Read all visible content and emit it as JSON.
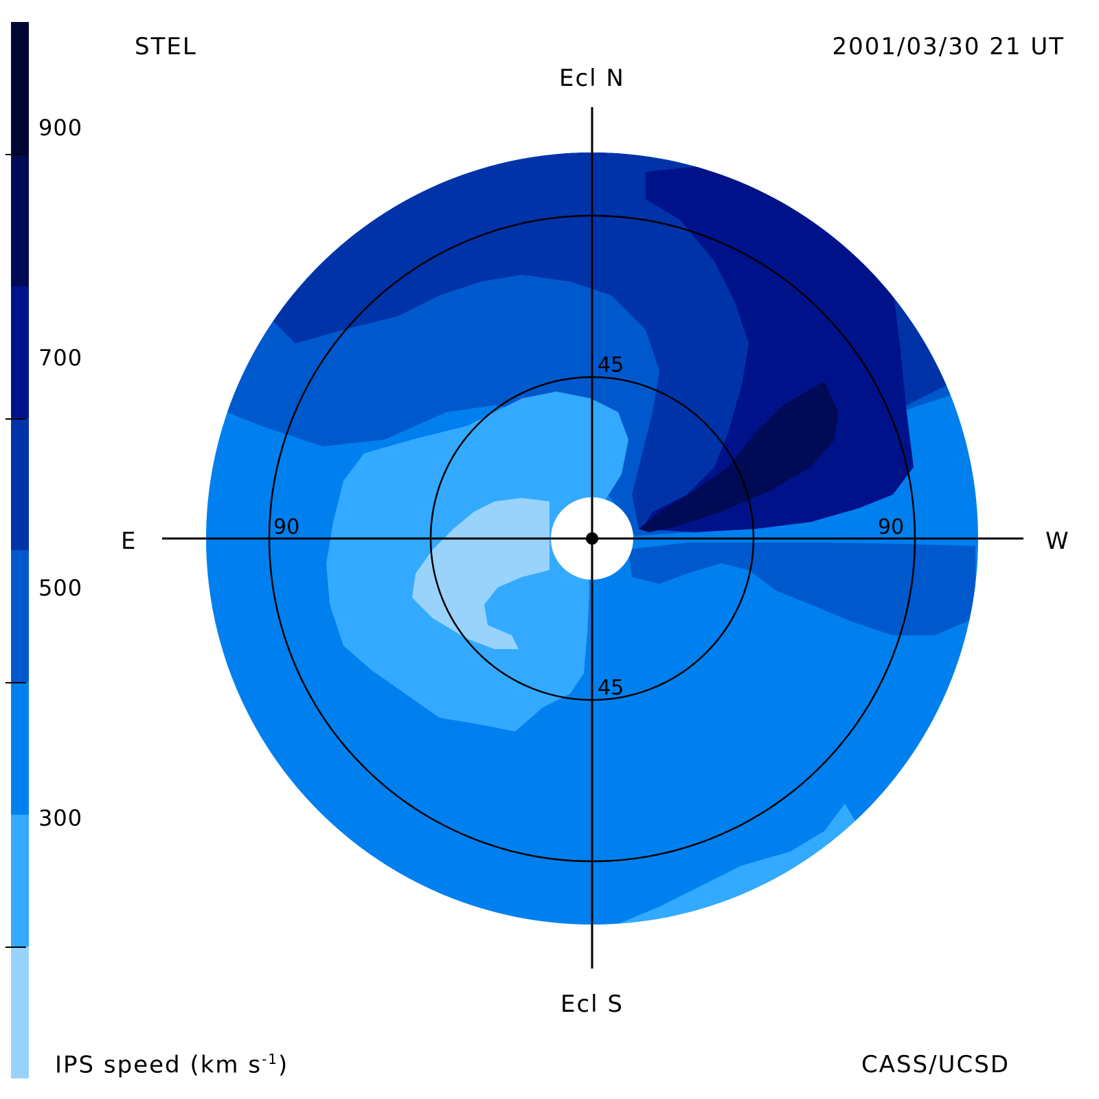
{
  "header": {
    "station": "STEL",
    "datetime": "2001/03/30 21 UT"
  },
  "footer": {
    "quantity_label": "IPS speed (km s",
    "quantity_exp": "-1",
    "quantity_close": ")",
    "credit": "CASS/UCSD"
  },
  "directions": {
    "north": "Ecl N",
    "south": "Ecl S",
    "east": "E",
    "west": "W"
  },
  "rings": {
    "inner_label_top": "45",
    "inner_label_bottom": "45",
    "outer_label_left": "90",
    "outer_label_right": "90"
  },
  "colorbar": {
    "ticks": [
      "900",
      "700",
      "500",
      "300"
    ],
    "tick_values": [
      900,
      700,
      500,
      300
    ],
    "levels": [
      {
        "min": 200,
        "max": 300,
        "color": "#99d3fb"
      },
      {
        "min": 300,
        "max": 400,
        "color": "#33aaff"
      },
      {
        "min": 400,
        "max": 500,
        "color": "#0080ee"
      },
      {
        "min": 500,
        "max": 600,
        "color": "#0059cc"
      },
      {
        "min": 600,
        "max": 700,
        "color": "#0033a8"
      },
      {
        "min": 700,
        "max": 800,
        "color": "#00128a"
      },
      {
        "min": 800,
        "max": 900,
        "color": "#000a55"
      },
      {
        "min": 900,
        "max": 1000,
        "color": "#000633"
      }
    ]
  },
  "map": {
    "projection": "fisheye sky map, elongation rings at 45 and 90 degrees",
    "center_marker": "sun",
    "colors": {
      "very_light": "#99d3fb",
      "light": "#33aaff",
      "medium": "#0080ee",
      "medium_dark": "#0059cc",
      "dark": "#0033a8",
      "darker": "#00128a",
      "darkest": "#000a55"
    }
  }
}
